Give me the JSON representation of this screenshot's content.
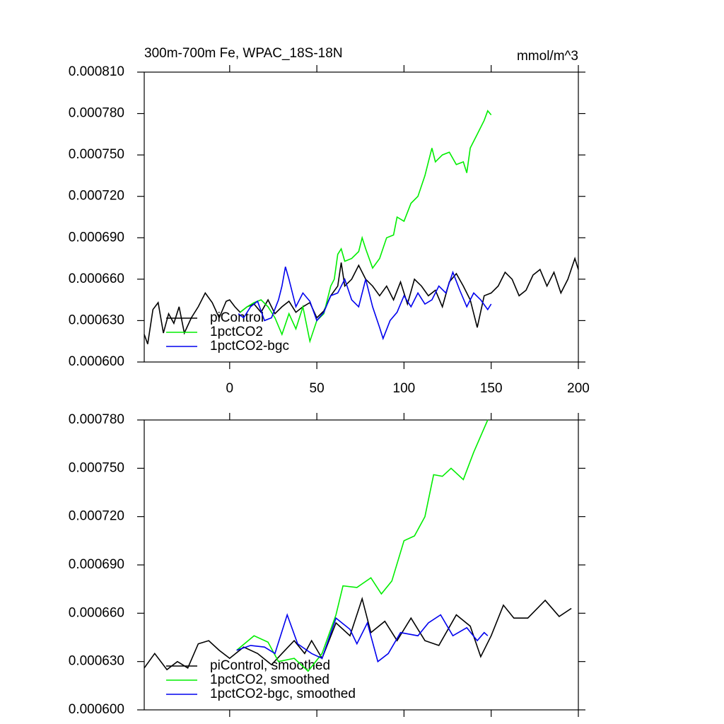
{
  "chart_data": [
    {
      "type": "line",
      "title": "300m-700m Fe, WPAC_18S-18N",
      "units": "mmol/m^3",
      "xlim": [
        -49,
        200
      ],
      "xticks": [
        0,
        50,
        100,
        150,
        200
      ],
      "xtick_labels": true,
      "ylim": [
        0.0006,
        0.00081
      ],
      "yticks": [
        {
          "value": 0.0006,
          "label": "0.000600"
        },
        {
          "value": 0.00063,
          "label": "0.000630"
        },
        {
          "value": 0.00066,
          "label": "0.000660"
        },
        {
          "value": 0.00069,
          "label": "0.000690"
        },
        {
          "value": 0.00072,
          "label": "0.000720"
        },
        {
          "value": 0.00075,
          "label": "0.000750"
        },
        {
          "value": 0.00078,
          "label": "0.000780"
        },
        {
          "value": 0.00081,
          "label": "0.000810"
        }
      ],
      "legend": "lower left",
      "series": [
        {
          "name": "piControl",
          "color": "#000000",
          "x": [
            -49,
            -47,
            -44,
            -41,
            -38,
            -35,
            -32,
            -29,
            -26,
            -22,
            -18,
            -14,
            -10,
            -6,
            -2,
            0,
            3,
            6,
            10,
            14,
            18,
            22,
            26,
            30,
            34,
            38,
            42,
            46,
            50,
            54,
            58,
            62,
            64,
            66,
            70,
            74,
            78,
            82,
            86,
            90,
            94,
            98,
            102,
            106,
            110,
            114,
            118,
            122,
            126,
            130,
            134,
            138,
            142,
            146,
            150,
            154,
            158,
            162,
            166,
            170,
            174,
            178,
            182,
            186,
            190,
            194,
            198,
            200
          ],
          "values": [
            0.00062,
            0.000613,
            0.000638,
            0.000643,
            0.000621,
            0.000635,
            0.000628,
            0.00064,
            0.000621,
            0.000632,
            0.00064,
            0.00065,
            0.000643,
            0.000632,
            0.000644,
            0.000645,
            0.00064,
            0.000636,
            0.00064,
            0.000642,
            0.000636,
            0.000645,
            0.000635,
            0.00064,
            0.000644,
            0.000636,
            0.00064,
            0.000643,
            0.000632,
            0.000637,
            0.000648,
            0.000655,
            0.000672,
            0.000655,
            0.00066,
            0.00067,
            0.00066,
            0.000655,
            0.000648,
            0.000655,
            0.000645,
            0.000658,
            0.000642,
            0.00066,
            0.000655,
            0.000648,
            0.000652,
            0.00064,
            0.000658,
            0.000664,
            0.000655,
            0.000645,
            0.000625,
            0.000648,
            0.00065,
            0.000655,
            0.000665,
            0.00066,
            0.000648,
            0.000652,
            0.000663,
            0.000667,
            0.000655,
            0.000665,
            0.00065,
            0.00066,
            0.000675,
            0.000667
          ]
        },
        {
          "name": "1pctCO2",
          "color": "#00ee00",
          "x": [
            6,
            10,
            14,
            18,
            22,
            26,
            30,
            34,
            38,
            42,
            46,
            50,
            54,
            58,
            60,
            62,
            64,
            66,
            70,
            74,
            76,
            78,
            82,
            86,
            90,
            94,
            96,
            100,
            104,
            108,
            112,
            114,
            116,
            118,
            122,
            126,
            130,
            134,
            136,
            138,
            142,
            146,
            148,
            150
          ],
          "values": [
            0.000636,
            0.00064,
            0.000643,
            0.000645,
            0.00064,
            0.000632,
            0.00062,
            0.000635,
            0.000624,
            0.00064,
            0.000615,
            0.00063,
            0.000635,
            0.000655,
            0.00066,
            0.000678,
            0.000682,
            0.000673,
            0.000675,
            0.00068,
            0.00069,
            0.000682,
            0.000668,
            0.000675,
            0.00069,
            0.000692,
            0.000705,
            0.000702,
            0.000715,
            0.00072,
            0.000735,
            0.000745,
            0.000755,
            0.000745,
            0.00075,
            0.000752,
            0.000743,
            0.000745,
            0.000737,
            0.000755,
            0.000765,
            0.000775,
            0.000782,
            0.000779
          ]
        },
        {
          "name": "1pctCO2-bgc",
          "color": "#0000ee",
          "x": [
            5,
            8,
            12,
            16,
            20,
            24,
            28,
            30,
            32,
            34,
            38,
            42,
            46,
            50,
            54,
            58,
            62,
            66,
            70,
            74,
            78,
            82,
            86,
            88,
            92,
            96,
            100,
            104,
            108,
            112,
            116,
            120,
            124,
            128,
            132,
            136,
            140,
            144,
            148,
            150
          ],
          "values": [
            0.000635,
            0.000632,
            0.00064,
            0.000644,
            0.00063,
            0.000632,
            0.000645,
            0.000655,
            0.000669,
            0.00066,
            0.00064,
            0.00065,
            0.000644,
            0.00063,
            0.000636,
            0.000648,
            0.00065,
            0.00066,
            0.000645,
            0.00064,
            0.00066,
            0.00064,
            0.000625,
            0.000617,
            0.00063,
            0.000636,
            0.000648,
            0.00064,
            0.00065,
            0.000642,
            0.000645,
            0.000655,
            0.00065,
            0.000665,
            0.000652,
            0.00064,
            0.00065,
            0.000645,
            0.000638,
            0.000642
          ]
        }
      ]
    },
    {
      "type": "line",
      "xlim": [
        -49,
        200
      ],
      "xticks": [
        0,
        50,
        100,
        150,
        200
      ],
      "xtick_labels": false,
      "ylim": [
        0.0006,
        0.00078
      ],
      "yticks": [
        {
          "value": 0.0006,
          "label": "0.000600"
        },
        {
          "value": 0.00063,
          "label": "0.000630"
        },
        {
          "value": 0.00066,
          "label": "0.000660"
        },
        {
          "value": 0.00069,
          "label": "0.000690"
        },
        {
          "value": 0.00072,
          "label": "0.000720"
        },
        {
          "value": 0.00075,
          "label": "0.000750"
        },
        {
          "value": 0.00078,
          "label": "0.000780"
        }
      ],
      "legend": "lower left",
      "series": [
        {
          "name": "piControl, smoothed",
          "color": "#000000",
          "x": [
            -49,
            -43,
            -36,
            -30,
            -24,
            -18,
            -12,
            -6,
            0,
            8,
            16,
            24,
            30,
            37,
            43,
            47,
            53,
            61,
            69,
            76,
            81,
            89,
            96,
            104,
            112,
            120,
            130,
            138,
            144,
            150,
            157,
            163,
            171,
            181,
            189,
            196
          ],
          "values": [
            0.000626,
            0.000635,
            0.000625,
            0.00063,
            0.000626,
            0.000641,
            0.000643,
            0.000637,
            0.000632,
            0.000639,
            0.000635,
            0.000628,
            0.000635,
            0.000643,
            0.000635,
            0.000643,
            0.000632,
            0.000654,
            0.000646,
            0.000669,
            0.000648,
            0.000655,
            0.000643,
            0.000657,
            0.000643,
            0.00064,
            0.000659,
            0.000652,
            0.000633,
            0.000646,
            0.000665,
            0.000657,
            0.000657,
            0.000668,
            0.000658,
            0.000663
          ]
        },
        {
          "name": "1pctCO2, smoothed",
          "color": "#00ee00",
          "x": [
            4,
            14,
            22,
            28,
            37,
            45,
            53,
            61,
            65,
            73,
            81,
            87,
            93,
            100,
            106,
            112,
            117,
            122,
            127,
            134,
            140,
            148
          ],
          "values": [
            0.000637,
            0.000646,
            0.000642,
            0.00063,
            0.000632,
            0.000624,
            0.000635,
            0.000659,
            0.000677,
            0.000676,
            0.000682,
            0.000672,
            0.00068,
            0.000705,
            0.000708,
            0.00072,
            0.000746,
            0.000745,
            0.00075,
            0.000743,
            0.00076,
            0.00078
          ]
        },
        {
          "name": "1pctCO2-bgc, smoothed",
          "color": "#0000ee",
          "x": [
            4,
            12,
            20,
            26,
            33,
            39,
            47,
            53,
            61,
            69,
            73,
            79,
            85,
            91,
            98,
            108,
            114,
            121,
            128,
            136,
            142,
            146,
            148
          ],
          "values": [
            0.000637,
            0.00064,
            0.000639,
            0.000635,
            0.000659,
            0.000641,
            0.000635,
            0.000632,
            0.000657,
            0.00065,
            0.000641,
            0.000654,
            0.00063,
            0.000635,
            0.000648,
            0.000646,
            0.000654,
            0.000659,
            0.000646,
            0.000651,
            0.000643,
            0.000648,
            0.000646
          ]
        }
      ]
    }
  ]
}
